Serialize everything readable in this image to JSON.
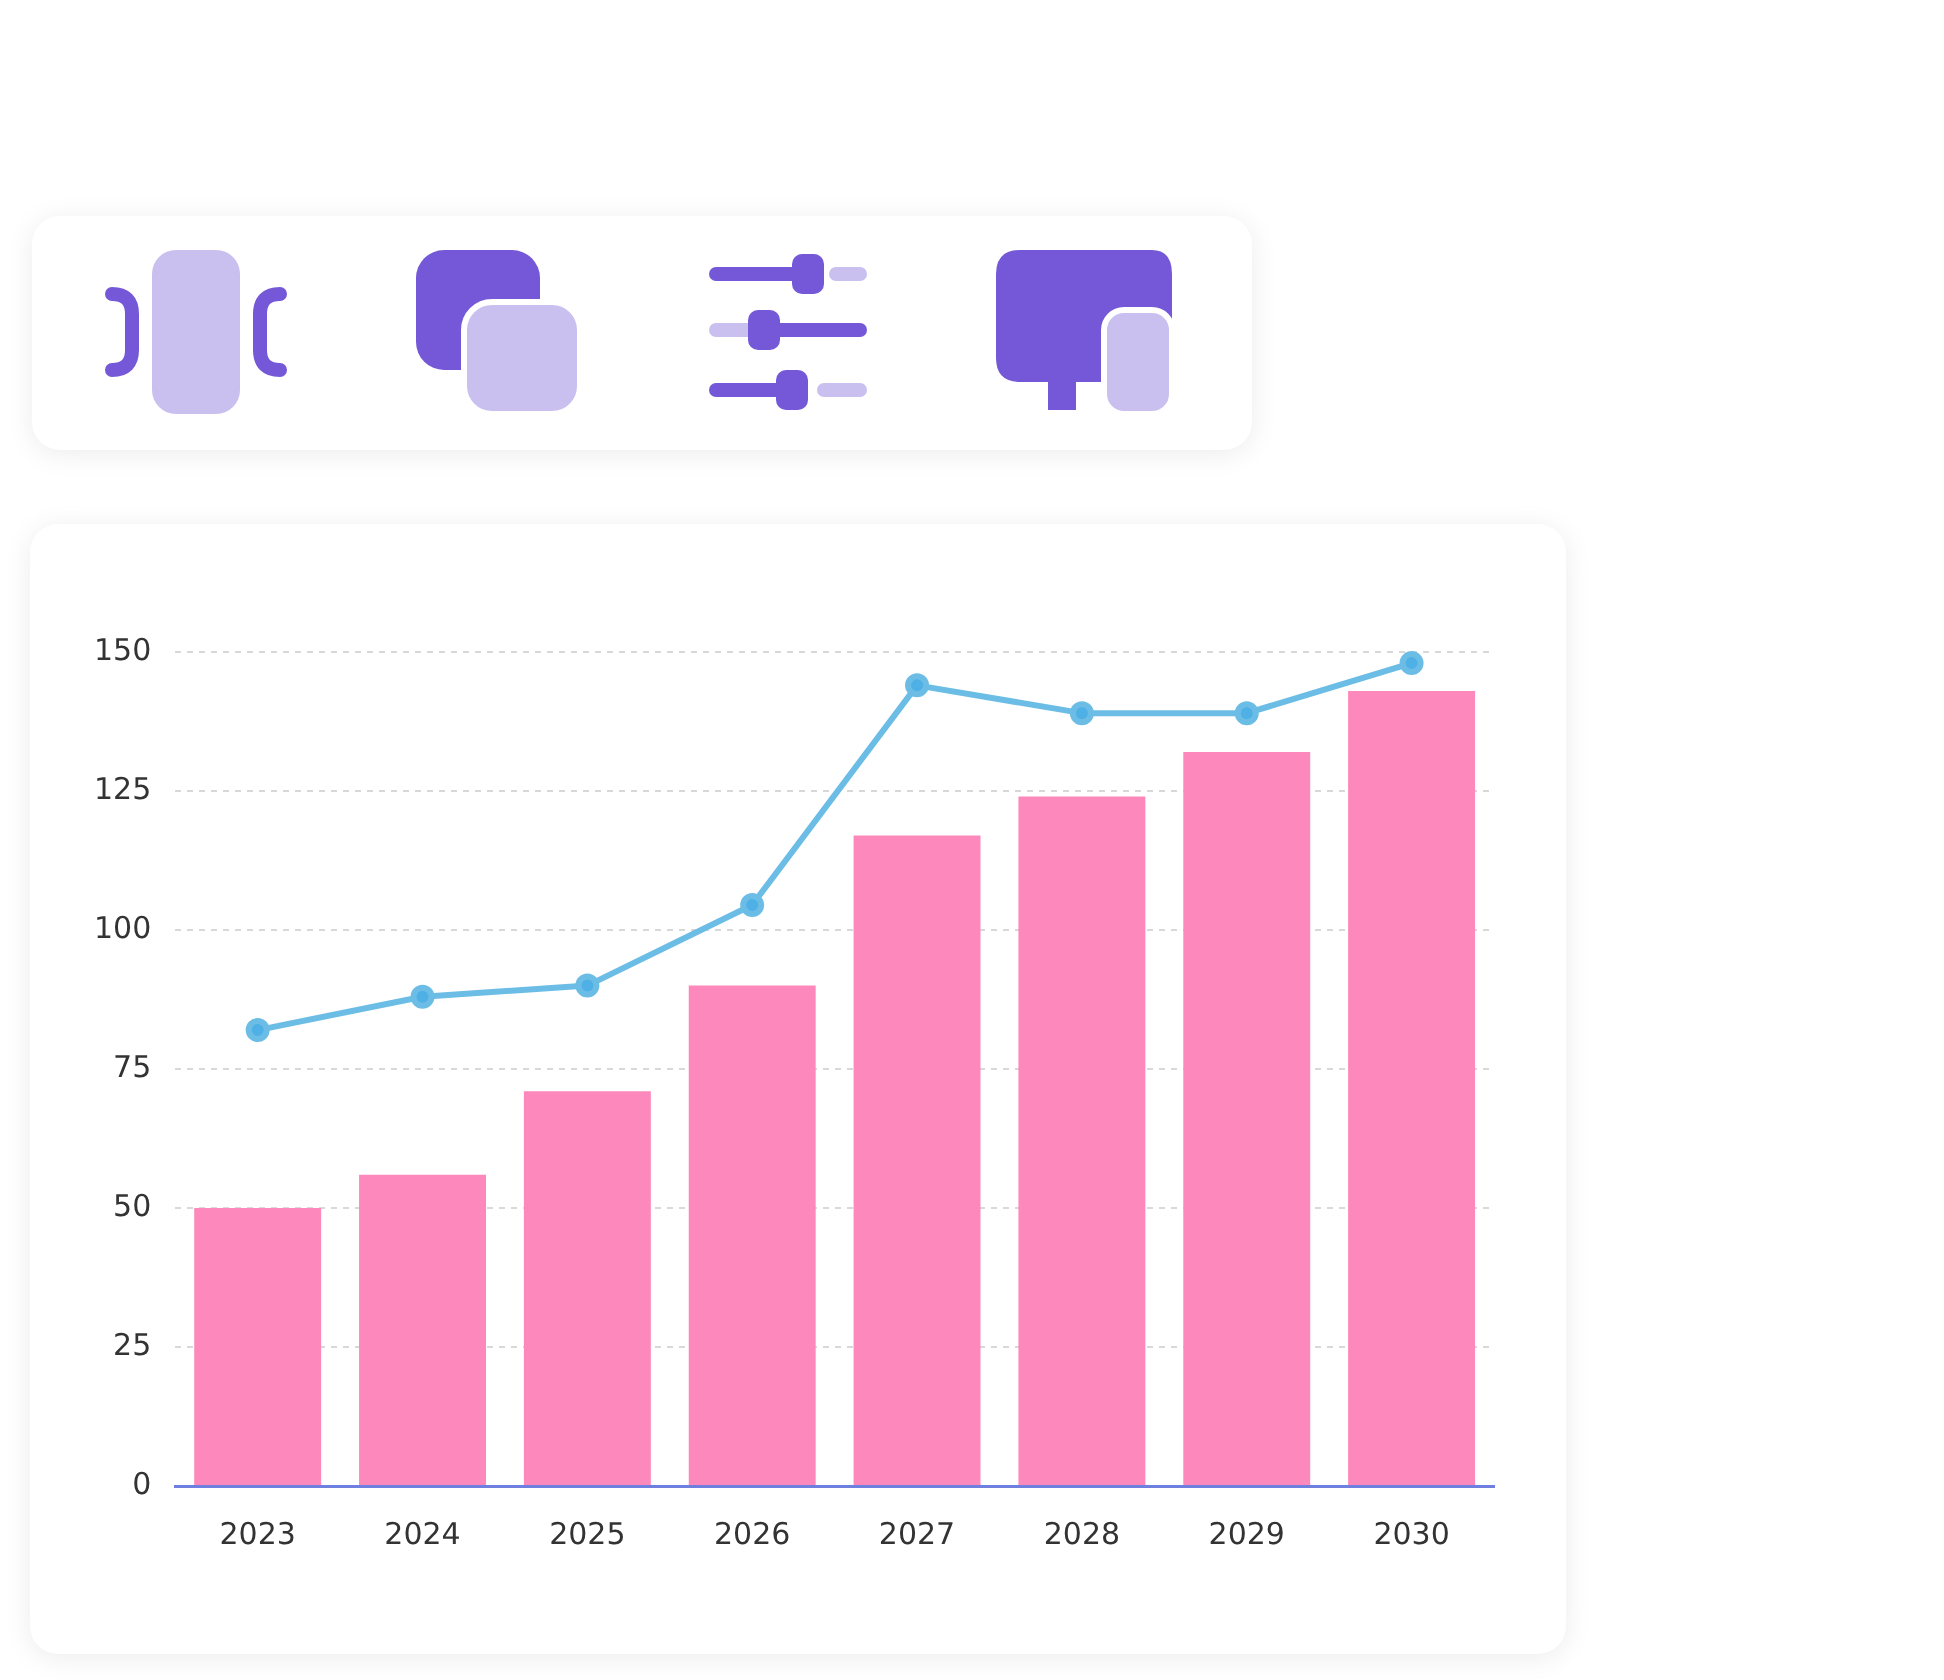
{
  "chart_data": {
    "type": "bar",
    "categories": [
      "2023",
      "2024",
      "2025",
      "2026",
      "2027",
      "2028",
      "2029",
      "2030"
    ],
    "series": [
      {
        "color": "#fd88bb",
        "values": [
          50,
          56,
          71,
          90,
          117,
          124,
          132,
          143
        ]
      },
      {
        "type": "line",
        "color": "#6cbde6",
        "values": [
          82,
          88,
          90,
          104.5,
          144,
          139,
          139,
          148
        ]
      }
    ],
    "ylim": [
      0,
      150
    ],
    "yticks": [
      0,
      25,
      50,
      75,
      100,
      125,
      150
    ],
    "grid": "y",
    "legend": false,
    "marker": "circle",
    "line_style": "solid"
  }
}
